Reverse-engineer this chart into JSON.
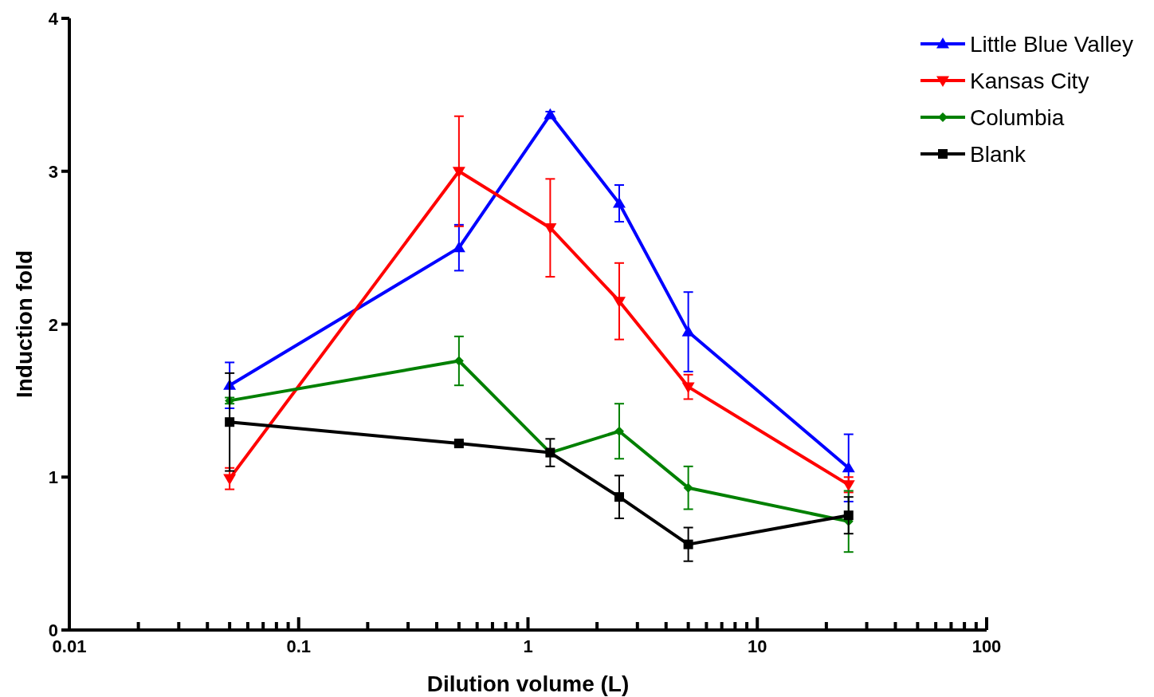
{
  "chart_data": {
    "type": "line",
    "xlabel": "Dilution volume (L)",
    "ylabel": "Induction fold",
    "log": "x",
    "x": [
      0.05,
      0.5,
      1.25,
      2.5,
      5,
      25
    ],
    "xlim": [
      0.01,
      100
    ],
    "xticks": [
      0.01,
      {
        "value": 0.02,
        "label": null
      },
      {
        "value": 0.03,
        "label": null
      },
      {
        "value": 0.04,
        "label": null
      },
      {
        "value": 0.05,
        "label": null
      },
      {
        "value": 0.06,
        "label": null
      },
      {
        "value": 0.07,
        "label": null
      },
      {
        "value": 0.08,
        "label": null
      },
      {
        "value": 0.09,
        "label": null
      },
      0.1,
      {
        "value": 0.2,
        "label": null
      },
      {
        "value": 0.3,
        "label": null
      },
      {
        "value": 0.4,
        "label": null
      },
      {
        "value": 0.5,
        "label": null
      },
      {
        "value": 0.6,
        "label": null
      },
      {
        "value": 0.7,
        "label": null
      },
      {
        "value": 0.8,
        "label": null
      },
      {
        "value": 0.9,
        "label": null
      },
      1,
      {
        "value": 2,
        "label": null
      },
      {
        "value": 3,
        "label": null
      },
      {
        "value": 4,
        "label": null
      },
      {
        "value": 5,
        "label": null
      },
      {
        "value": 6,
        "label": null
      },
      {
        "value": 7,
        "label": null
      },
      {
        "value": 8,
        "label": null
      },
      {
        "value": 9,
        "label": null
      },
      10,
      {
        "value": 20,
        "label": null
      },
      {
        "value": 30,
        "label": null
      },
      {
        "value": 40,
        "label": null
      },
      {
        "value": 50,
        "label": null
      },
      {
        "value": 60,
        "label": null
      },
      {
        "value": 70,
        "label": null
      },
      {
        "value": 80,
        "label": null
      },
      {
        "value": 90,
        "label": null
      },
      100
    ],
    "ylim": [
      0,
      4
    ],
    "yticks": [
      0,
      1,
      2,
      3,
      4
    ],
    "grid": false,
    "legend": "top right",
    "line_style": "solid",
    "series": [
      {
        "name": "Little Blue Valley",
        "color": "#0000ff",
        "marker": "triangle",
        "values": [
          1.6,
          2.5,
          3.37,
          2.79,
          1.95,
          1.06
        ],
        "errors": [
          0.15,
          0.15,
          0.02,
          0.12,
          0.26,
          0.22
        ]
      },
      {
        "name": "Kansas City",
        "color": "#ff0000",
        "marker": "triangle-down",
        "values": [
          0.99,
          3.0,
          2.63,
          2.15,
          1.59,
          0.95
        ],
        "errors": [
          0.07,
          0.36,
          0.32,
          0.25,
          0.08,
          0.05
        ]
      },
      {
        "name": "Columbia",
        "color": "#008000",
        "marker": "diamond",
        "values": [
          1.5,
          1.76,
          1.16,
          1.3,
          0.93,
          0.71
        ],
        "errors": [
          0.02,
          0.16,
          null,
          0.18,
          0.14,
          0.2
        ]
      },
      {
        "name": "Blank",
        "color": "#000000",
        "marker": "square",
        "values": [
          1.36,
          1.22,
          1.16,
          0.87,
          0.56,
          0.75
        ],
        "errors": [
          0.32,
          0.01,
          0.09,
          0.14,
          0.11,
          0.12
        ]
      }
    ]
  }
}
